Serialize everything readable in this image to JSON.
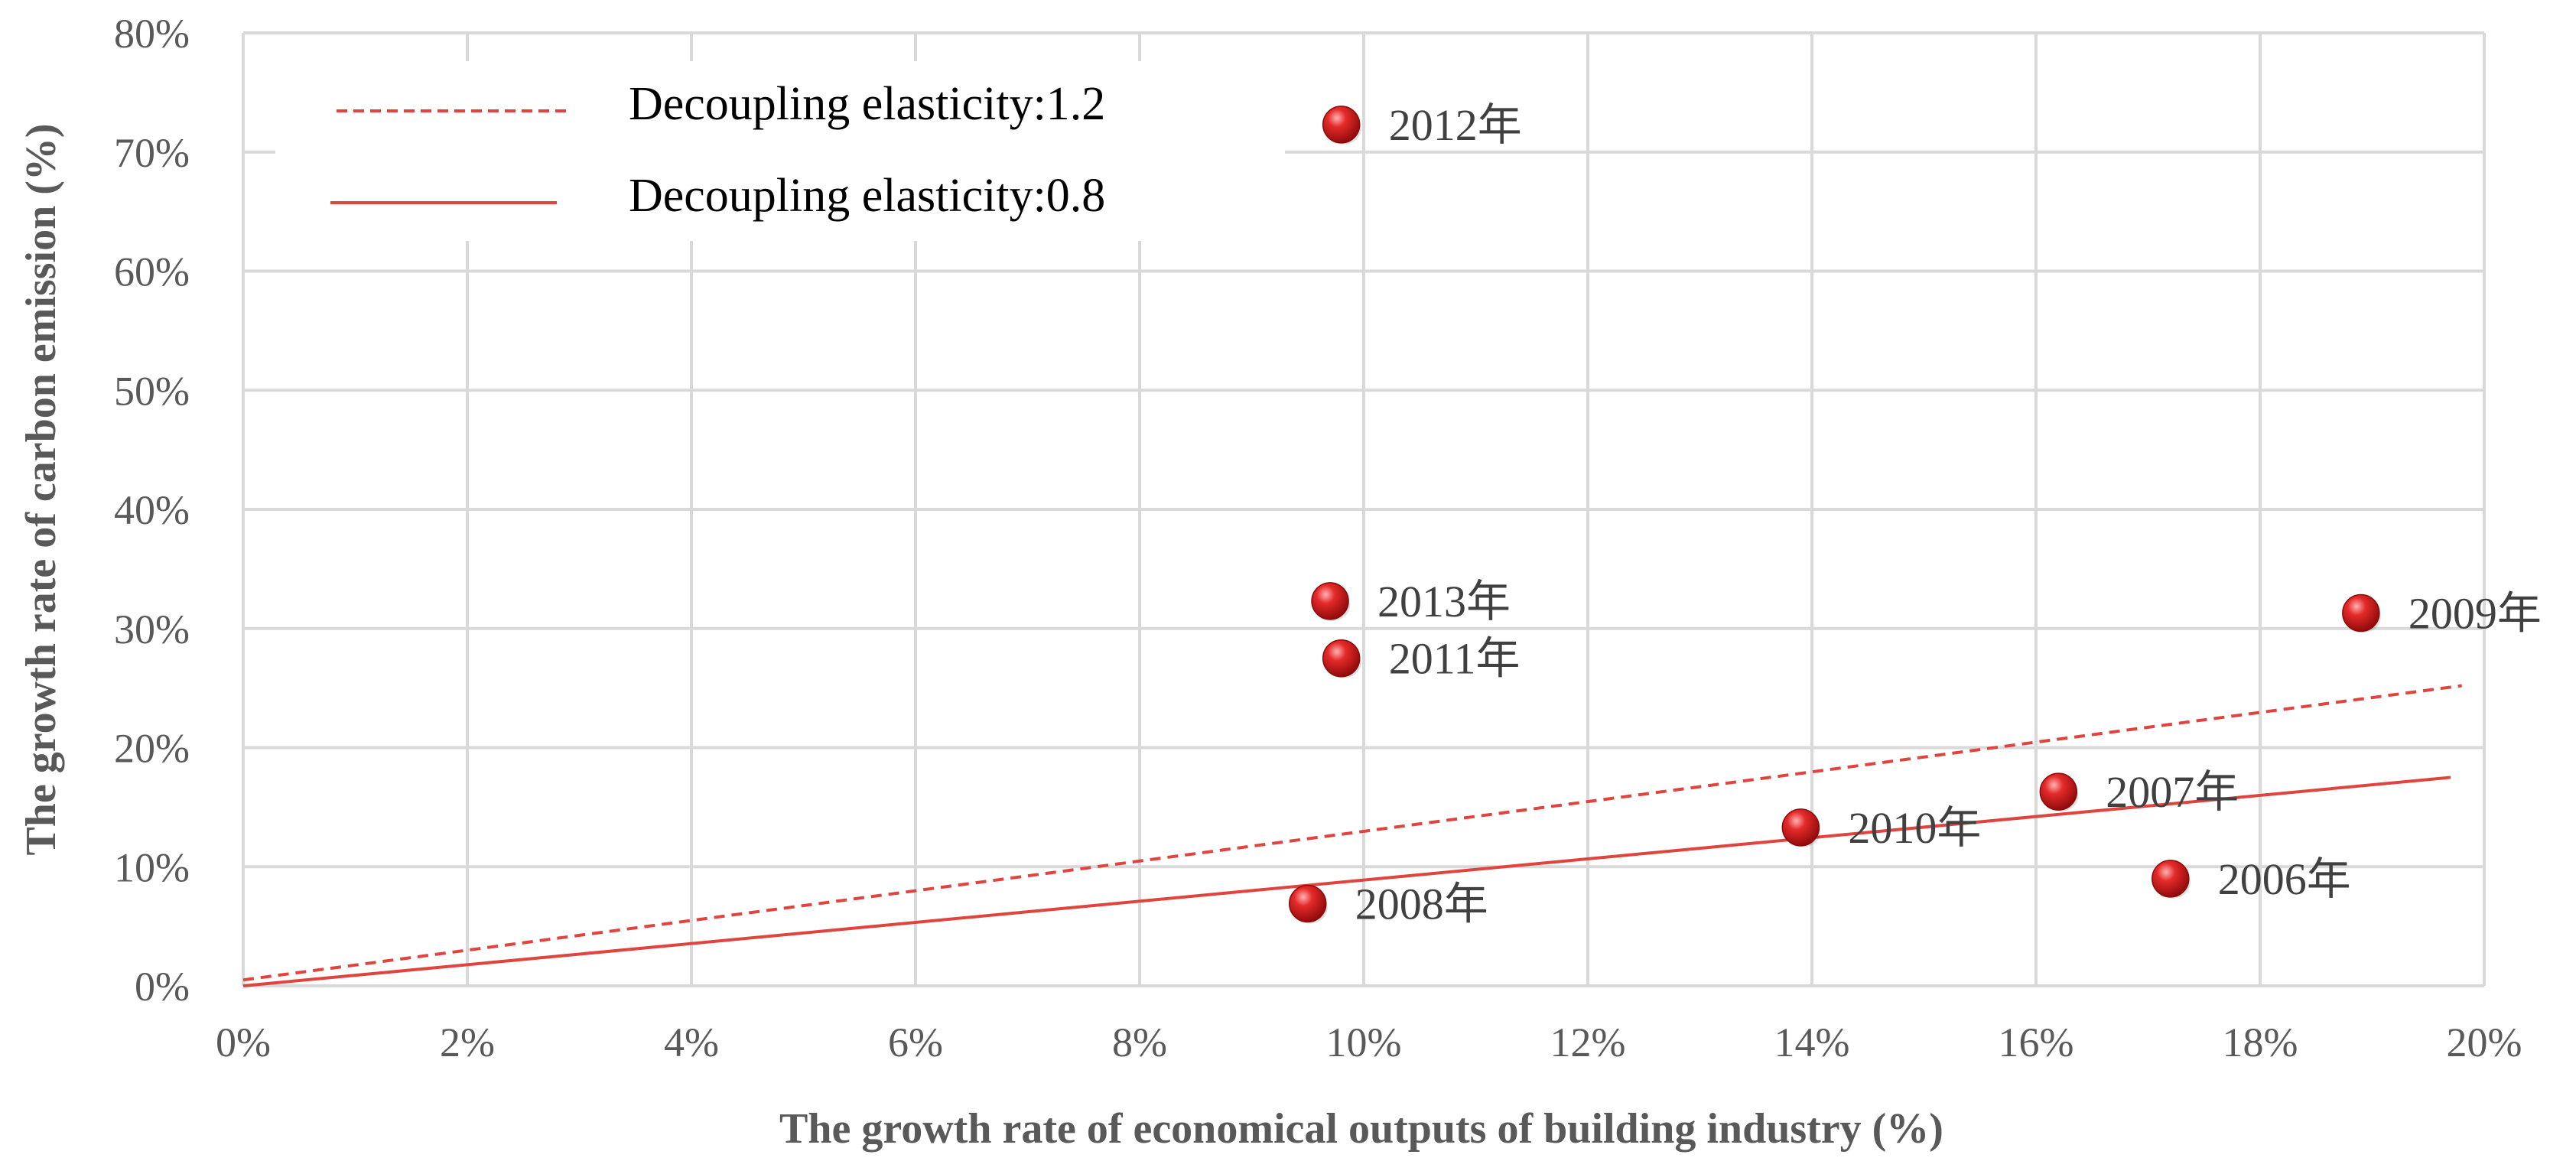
{
  "colors": {
    "grid": "#d9d9d9",
    "line": "#e0443e",
    "point": "#e02020",
    "point_dark": "#8e0a0a",
    "tick_text": "#595959"
  },
  "chart_data": {
    "type": "scatter",
    "xlabel": "The growth rate of economical outputs of building industry (%)",
    "ylabel": "The growth rate of carbon emission (%)",
    "xlim": [
      0,
      20
    ],
    "ylim": [
      0,
      80
    ],
    "x_ticks": [
      "0%",
      "2%",
      "4%",
      "6%",
      "8%",
      "10%",
      "12%",
      "14%",
      "16%",
      "18%",
      "20%"
    ],
    "y_ticks": [
      "0%",
      "10%",
      "20%",
      "30%",
      "40%",
      "50%",
      "60%",
      "70%",
      "80%"
    ],
    "grid": true,
    "legend_position": "top-left",
    "lines": [
      {
        "name": "Decoupling elasticity:1.2",
        "style": "dashed",
        "x": [
          0,
          19.8
        ],
        "y": [
          0.5,
          25.2
        ]
      },
      {
        "name": "Decoupling elasticity:0.8",
        "style": "solid",
        "x": [
          0,
          19.7
        ],
        "y": [
          0,
          17.5
        ]
      }
    ],
    "points": [
      {
        "label": "2006年",
        "x": 17.2,
        "y": 9.0
      },
      {
        "label": "2007年",
        "x": 16.2,
        "y": 16.3
      },
      {
        "label": "2008年",
        "x": 9.5,
        "y": 6.9
      },
      {
        "label": "2009年",
        "x": 18.9,
        "y": 31.3
      },
      {
        "label": "2010年",
        "x": 13.9,
        "y": 13.3
      },
      {
        "label": "2011年",
        "x": 9.8,
        "y": 27.5
      },
      {
        "label": "2012年",
        "x": 9.8,
        "y": 72.3
      },
      {
        "label": "2013年",
        "x": 9.7,
        "y": 32.3
      }
    ]
  }
}
